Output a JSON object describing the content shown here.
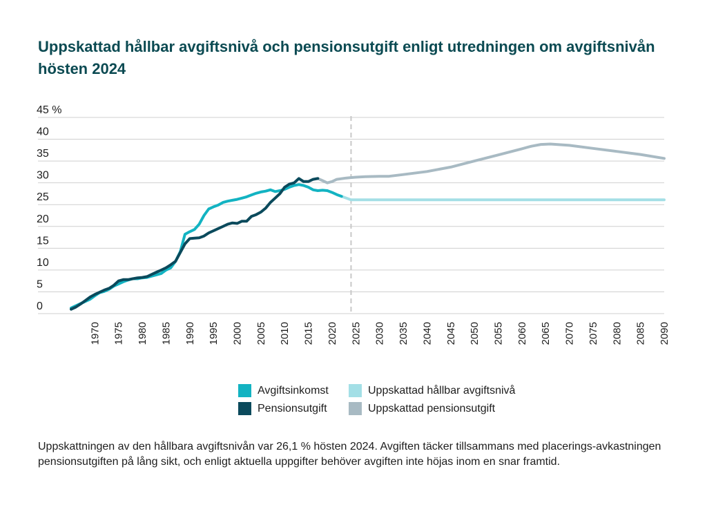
{
  "title": "Uppskattad hållbar avgiftsnivå och pensionsutgift enligt utredningen om avgiftsnivån hösten 2024",
  "note": "Uppskattningen av den hållbara avgiftsnivån var 26,1 % hösten 2024. Avgiften täcker tillsammans med placerings-avkastningen pensionsutgiften på lång sikt, och enligt aktuella uppgifter behöver avgiften inte höjas inom en snar framtid.",
  "legend": [
    {
      "label": "Avgiftsinkomst",
      "color": "#13b3c2"
    },
    {
      "label": "Pensionsutgift",
      "color": "#0b4a5c"
    },
    {
      "label": "Uppskattad hållbar avgiftsnivå",
      "color": "#a3dfe6"
    },
    {
      "label": "Uppskattad pensionsutgift",
      "color": "#a8bac3"
    }
  ],
  "chart_data": {
    "type": "line",
    "ylim": [
      0,
      45
    ],
    "xlim": [
      1965,
      2090
    ],
    "grid": true,
    "y_ticks": [
      {
        "value": 0,
        "label": "0"
      },
      {
        "value": 5,
        "label": "5"
      },
      {
        "value": 10,
        "label": "10"
      },
      {
        "value": 15,
        "label": "15"
      },
      {
        "value": 20,
        "label": "20"
      },
      {
        "value": 25,
        "label": "25"
      },
      {
        "value": 30,
        "label": "30"
      },
      {
        "value": 35,
        "label": "35"
      },
      {
        "value": 40,
        "label": "40"
      },
      {
        "value": 45,
        "label": "45 %"
      }
    ],
    "x_ticks": [
      "1970",
      "1975",
      "1980",
      "1985",
      "1990",
      "1995",
      "2000",
      "2005",
      "2010",
      "2015",
      "2020",
      "2025",
      "2030",
      "2035",
      "2040",
      "2045",
      "2050",
      "2055",
      "2060",
      "2065",
      "2070",
      "2075",
      "2080",
      "2085",
      "2090"
    ],
    "divider_year": 2024,
    "series": [
      {
        "name": "Avgiftsinkomst",
        "color": "#13b3c2",
        "points": [
          [
            1965,
            1.3
          ],
          [
            1967,
            2.3
          ],
          [
            1969,
            3.3
          ],
          [
            1970,
            4.1
          ],
          [
            1971,
            4.8
          ],
          [
            1972,
            5.1
          ],
          [
            1973,
            5.6
          ],
          [
            1974,
            6.3
          ],
          [
            1975,
            6.8
          ],
          [
            1976,
            7.3
          ],
          [
            1977,
            7.7
          ],
          [
            1978,
            8.0
          ],
          [
            1979,
            8.0
          ],
          [
            1980,
            8.2
          ],
          [
            1981,
            8.3
          ],
          [
            1982,
            8.6
          ],
          [
            1983,
            8.9
          ],
          [
            1984,
            9.2
          ],
          [
            1985,
            10.0
          ],
          [
            1986,
            10.5
          ],
          [
            1987,
            12.0
          ],
          [
            1988,
            14.2
          ],
          [
            1989,
            18.2
          ],
          [
            1990,
            18.8
          ],
          [
            1991,
            19.3
          ],
          [
            1992,
            20.5
          ],
          [
            1993,
            22.5
          ],
          [
            1994,
            24.0
          ],
          [
            1995,
            24.5
          ],
          [
            1996,
            24.9
          ],
          [
            1997,
            25.5
          ],
          [
            1998,
            25.8
          ],
          [
            1999,
            26.0
          ],
          [
            2000,
            26.2
          ],
          [
            2001,
            26.5
          ],
          [
            2002,
            26.8
          ],
          [
            2003,
            27.2
          ],
          [
            2004,
            27.6
          ],
          [
            2005,
            27.9
          ],
          [
            2006,
            28.1
          ],
          [
            2007,
            28.4
          ],
          [
            2008,
            28.0
          ],
          [
            2009,
            28.2
          ],
          [
            2010,
            28.5
          ],
          [
            2011,
            29.0
          ],
          [
            2012,
            29.4
          ],
          [
            2013,
            29.6
          ],
          [
            2014,
            29.4
          ],
          [
            2015,
            29.0
          ],
          [
            2016,
            28.4
          ],
          [
            2017,
            28.2
          ],
          [
            2018,
            28.3
          ],
          [
            2019,
            28.2
          ],
          [
            2020,
            27.8
          ],
          [
            2021,
            27.3
          ],
          [
            2022,
            26.9
          ]
        ]
      },
      {
        "name": "Pensionsutgift",
        "color": "#0b4a5c",
        "points": [
          [
            1965,
            1.0
          ],
          [
            1966,
            1.5
          ],
          [
            1967,
            2.2
          ],
          [
            1968,
            3.0
          ],
          [
            1969,
            3.8
          ],
          [
            1970,
            4.4
          ],
          [
            1971,
            4.9
          ],
          [
            1972,
            5.4
          ],
          [
            1973,
            5.8
          ],
          [
            1974,
            6.5
          ],
          [
            1975,
            7.5
          ],
          [
            1976,
            7.8
          ],
          [
            1977,
            7.8
          ],
          [
            1978,
            8.0
          ],
          [
            1979,
            8.2
          ],
          [
            1980,
            8.3
          ],
          [
            1981,
            8.5
          ],
          [
            1982,
            9.0
          ],
          [
            1983,
            9.5
          ],
          [
            1984,
            10.0
          ],
          [
            1985,
            10.5
          ],
          [
            1986,
            11.2
          ],
          [
            1987,
            12.0
          ],
          [
            1988,
            14.0
          ],
          [
            1989,
            16.0
          ],
          [
            1990,
            17.2
          ],
          [
            1991,
            17.3
          ],
          [
            1992,
            17.4
          ],
          [
            1993,
            17.8
          ],
          [
            1994,
            18.5
          ],
          [
            1995,
            19.0
          ],
          [
            1996,
            19.5
          ],
          [
            1997,
            20.0
          ],
          [
            1998,
            20.5
          ],
          [
            1999,
            20.8
          ],
          [
            2000,
            20.7
          ],
          [
            2001,
            21.2
          ],
          [
            2002,
            21.2
          ],
          [
            2003,
            22.3
          ],
          [
            2004,
            22.7
          ],
          [
            2005,
            23.3
          ],
          [
            2006,
            24.2
          ],
          [
            2007,
            25.5
          ],
          [
            2008,
            26.5
          ],
          [
            2009,
            27.5
          ],
          [
            2010,
            29.0
          ],
          [
            2011,
            29.7
          ],
          [
            2012,
            30.0
          ],
          [
            2013,
            31.0
          ],
          [
            2014,
            30.3
          ],
          [
            2015,
            30.3
          ],
          [
            2016,
            30.8
          ],
          [
            2017,
            31.0
          ]
        ]
      },
      {
        "name": "Uppskattad hållbar avgiftsnivå",
        "color": "#a3dfe6",
        "points": [
          [
            2022,
            26.9
          ],
          [
            2023,
            26.5
          ],
          [
            2024,
            26.1
          ],
          [
            2030,
            26.1
          ],
          [
            2040,
            26.1
          ],
          [
            2050,
            26.1
          ],
          [
            2060,
            26.1
          ],
          [
            2070,
            26.1
          ],
          [
            2080,
            26.1
          ],
          [
            2090,
            26.1
          ]
        ]
      },
      {
        "name": "Uppskattad pensionsutgift",
        "color": "#a8bac3",
        "points": [
          [
            2017,
            31.0
          ],
          [
            2018,
            30.5
          ],
          [
            2019,
            30.0
          ],
          [
            2020,
            30.3
          ],
          [
            2021,
            30.8
          ],
          [
            2023,
            31.1
          ],
          [
            2025,
            31.3
          ],
          [
            2027,
            31.4
          ],
          [
            2030,
            31.5
          ],
          [
            2032,
            31.5
          ],
          [
            2035,
            31.9
          ],
          [
            2040,
            32.6
          ],
          [
            2045,
            33.6
          ],
          [
            2050,
            35.0
          ],
          [
            2055,
            36.4
          ],
          [
            2060,
            37.8
          ],
          [
            2062,
            38.4
          ],
          [
            2064,
            38.8
          ],
          [
            2066,
            38.9
          ],
          [
            2070,
            38.6
          ],
          [
            2075,
            37.9
          ],
          [
            2080,
            37.2
          ],
          [
            2085,
            36.5
          ],
          [
            2090,
            35.6
          ]
        ]
      }
    ]
  }
}
